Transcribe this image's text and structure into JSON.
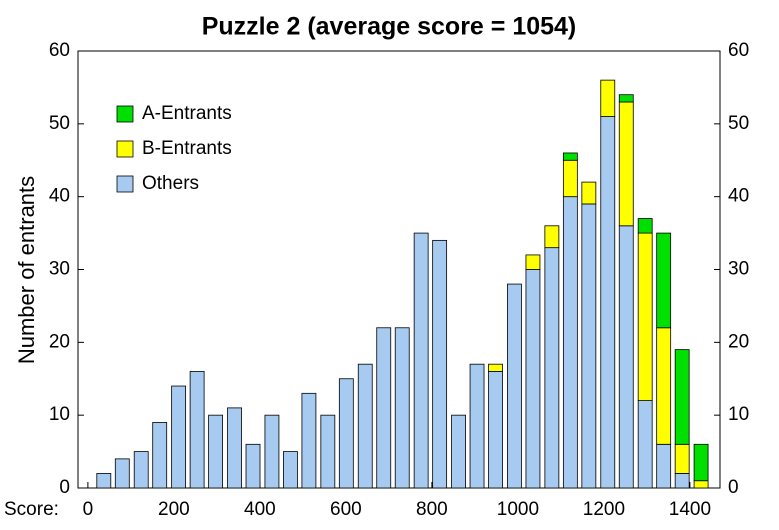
{
  "chart_data": {
    "type": "stacked_bar",
    "title": "Puzzle 2 (average score = 1054)",
    "x_label": "Score:",
    "y_label": "Number of entrants",
    "x": [
      37,
      80,
      124,
      167,
      211,
      254,
      297,
      341,
      384,
      428,
      471,
      514,
      558,
      601,
      645,
      688,
      731,
      775,
      818,
      862,
      905,
      948,
      992,
      1035,
      1079,
      1122,
      1165,
      1209,
      1252,
      1296,
      1339,
      1382,
      1426
    ],
    "series": [
      {
        "name": "Others",
        "color": "#a6caf0",
        "values": [
          2,
          4,
          5,
          9,
          14,
          16,
          10,
          11,
          6,
          10,
          5,
          13,
          10,
          15,
          17,
          22,
          22,
          35,
          34,
          10,
          17,
          16,
          28,
          30,
          33,
          40,
          39,
          51,
          36,
          12,
          6,
          2,
          0
        ]
      },
      {
        "name": "B-Entrants",
        "color": "#ffff00",
        "values": [
          0,
          0,
          0,
          0,
          0,
          0,
          0,
          0,
          0,
          0,
          0,
          0,
          0,
          0,
          0,
          0,
          0,
          0,
          0,
          0,
          0,
          1,
          0,
          2,
          3,
          5,
          3,
          5,
          17,
          23,
          16,
          4,
          1
        ]
      },
      {
        "name": "A-Entrants",
        "color": "#00e000",
        "values": [
          0,
          0,
          0,
          0,
          0,
          0,
          0,
          0,
          0,
          0,
          0,
          0,
          0,
          0,
          0,
          0,
          0,
          0,
          0,
          0,
          0,
          0,
          0,
          0,
          0,
          1,
          0,
          0,
          1,
          2,
          13,
          13,
          5
        ]
      }
    ],
    "xlim": [
      -23,
      1470
    ],
    "xticks": [
      0,
      200,
      400,
      600,
      800,
      1000,
      1200,
      1400
    ],
    "ylim": [
      0,
      60
    ],
    "yticks": [
      0,
      10,
      20,
      30,
      40,
      50,
      60
    ],
    "y2lim": [
      0,
      60
    ],
    "y2ticks": [
      0,
      10,
      20,
      30,
      40,
      50,
      60
    ],
    "legend": "upper-left"
  }
}
